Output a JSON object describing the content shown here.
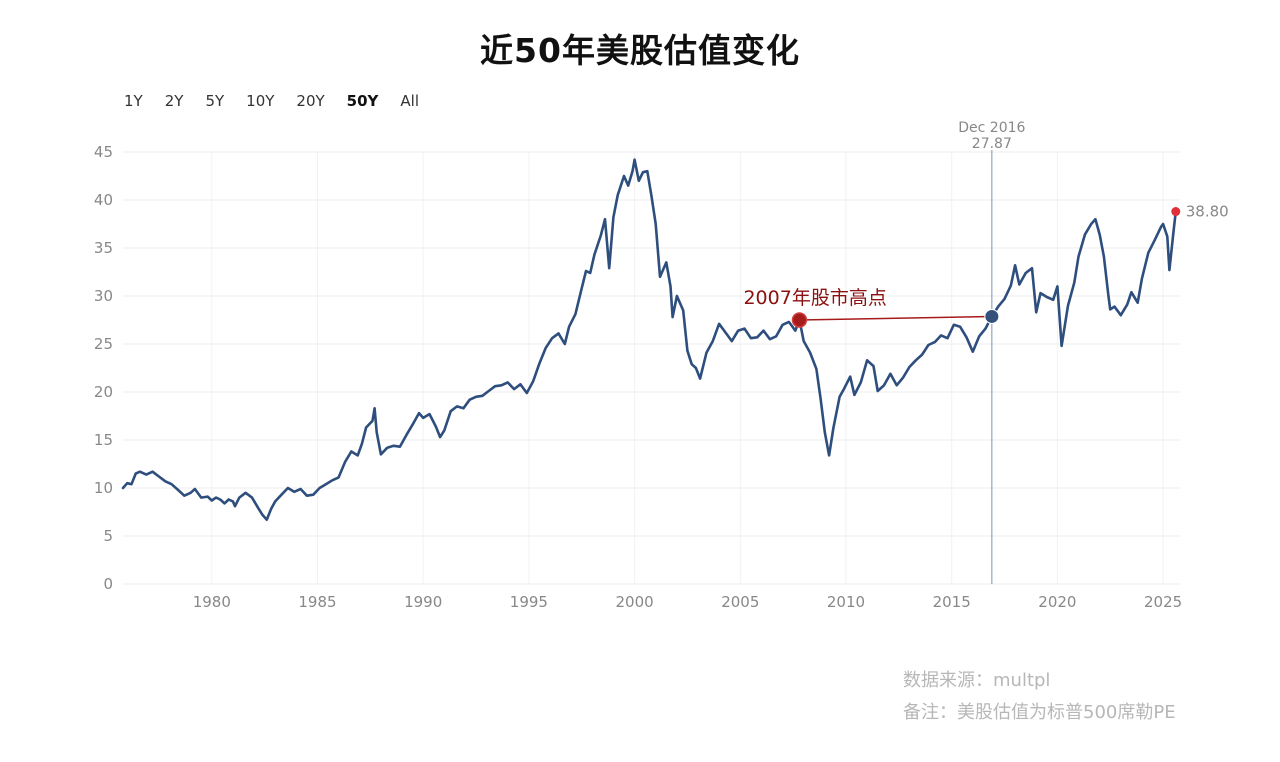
{
  "title": "近50年美股估值变化",
  "ranges": [
    {
      "label": "1Y",
      "active": false
    },
    {
      "label": "2Y",
      "active": false
    },
    {
      "label": "5Y",
      "active": false
    },
    {
      "label": "10Y",
      "active": false
    },
    {
      "label": "20Y",
      "active": false
    },
    {
      "label": "50Y",
      "active": true
    },
    {
      "label": "All",
      "active": false
    }
  ],
  "notes": {
    "source": "数据来源：multpl",
    "remark": "备注：美股估值为标普500席勒PE"
  },
  "colors": {
    "line": "#2e4e7e",
    "grid": "#ececec",
    "axis_text": "#888888",
    "annotation": "#8b1010",
    "last_point": "#e0303a",
    "marker": "#34507d"
  },
  "chart_data": {
    "type": "line",
    "title": "",
    "xlabel": "",
    "ylabel": "",
    "xlim": [
      1975.8,
      2025.8
    ],
    "ylim": [
      0,
      45
    ],
    "x_ticks": [
      1980,
      1985,
      1990,
      1995,
      2000,
      2005,
      2010,
      2015,
      2020,
      2025
    ],
    "y_ticks": [
      0,
      5,
      10,
      15,
      20,
      25,
      30,
      35,
      40,
      45
    ],
    "grid": true,
    "series": [
      {
        "points": [
          [
            1975.8,
            10.0
          ],
          [
            1976.0,
            10.5
          ],
          [
            1976.2,
            10.4
          ],
          [
            1976.4,
            11.5
          ],
          [
            1976.6,
            11.7
          ],
          [
            1976.9,
            11.4
          ],
          [
            1977.2,
            11.7
          ],
          [
            1977.5,
            11.2
          ],
          [
            1977.8,
            10.7
          ],
          [
            1978.1,
            10.4
          ],
          [
            1978.4,
            9.8
          ],
          [
            1978.7,
            9.2
          ],
          [
            1979.0,
            9.5
          ],
          [
            1979.2,
            9.9
          ],
          [
            1979.5,
            9.0
          ],
          [
            1979.8,
            9.1
          ],
          [
            1980.0,
            8.7
          ],
          [
            1980.2,
            9.0
          ],
          [
            1980.4,
            8.8
          ],
          [
            1980.6,
            8.4
          ],
          [
            1980.8,
            8.8
          ],
          [
            1981.0,
            8.6
          ],
          [
            1981.1,
            8.1
          ],
          [
            1981.3,
            9.0
          ],
          [
            1981.6,
            9.5
          ],
          [
            1981.9,
            9.0
          ],
          [
            1982.2,
            7.9
          ],
          [
            1982.4,
            7.2
          ],
          [
            1982.6,
            6.7
          ],
          [
            1982.8,
            7.8
          ],
          [
            1983.0,
            8.6
          ],
          [
            1983.3,
            9.3
          ],
          [
            1983.6,
            10.0
          ],
          [
            1983.9,
            9.6
          ],
          [
            1984.2,
            9.9
          ],
          [
            1984.5,
            9.2
          ],
          [
            1984.8,
            9.3
          ],
          [
            1985.1,
            10.0
          ],
          [
            1985.4,
            10.4
          ],
          [
            1985.7,
            10.8
          ],
          [
            1986.0,
            11.1
          ],
          [
            1986.3,
            12.7
          ],
          [
            1986.6,
            13.8
          ],
          [
            1986.9,
            13.4
          ],
          [
            1987.1,
            14.6
          ],
          [
            1987.3,
            16.3
          ],
          [
            1987.6,
            17.0
          ],
          [
            1987.7,
            18.3
          ],
          [
            1987.8,
            15.8
          ],
          [
            1988.0,
            13.5
          ],
          [
            1988.3,
            14.2
          ],
          [
            1988.6,
            14.4
          ],
          [
            1988.9,
            14.3
          ],
          [
            1989.2,
            15.5
          ],
          [
            1989.5,
            16.6
          ],
          [
            1989.8,
            17.8
          ],
          [
            1990.0,
            17.3
          ],
          [
            1990.3,
            17.7
          ],
          [
            1990.6,
            16.4
          ],
          [
            1990.8,
            15.3
          ],
          [
            1991.0,
            16.0
          ],
          [
            1991.3,
            18.0
          ],
          [
            1991.6,
            18.5
          ],
          [
            1991.9,
            18.3
          ],
          [
            1992.2,
            19.2
          ],
          [
            1992.5,
            19.5
          ],
          [
            1992.8,
            19.6
          ],
          [
            1993.1,
            20.1
          ],
          [
            1993.4,
            20.6
          ],
          [
            1993.7,
            20.7
          ],
          [
            1994.0,
            21.0
          ],
          [
            1994.3,
            20.3
          ],
          [
            1994.6,
            20.8
          ],
          [
            1994.9,
            19.9
          ],
          [
            1995.2,
            21.1
          ],
          [
            1995.5,
            23.0
          ],
          [
            1995.8,
            24.6
          ],
          [
            1996.1,
            25.6
          ],
          [
            1996.4,
            26.1
          ],
          [
            1996.7,
            25.0
          ],
          [
            1996.9,
            26.8
          ],
          [
            1997.2,
            28.1
          ],
          [
            1997.5,
            30.8
          ],
          [
            1997.7,
            32.6
          ],
          [
            1997.9,
            32.4
          ],
          [
            1998.1,
            34.3
          ],
          [
            1998.4,
            36.3
          ],
          [
            1998.6,
            38.0
          ],
          [
            1998.8,
            32.9
          ],
          [
            1999.0,
            38.2
          ],
          [
            1999.2,
            40.5
          ],
          [
            1999.5,
            42.5
          ],
          [
            1999.7,
            41.5
          ],
          [
            1999.9,
            43.0
          ],
          [
            2000.0,
            44.2
          ],
          [
            2000.2,
            42.0
          ],
          [
            2000.4,
            42.9
          ],
          [
            2000.6,
            43.0
          ],
          [
            2000.8,
            40.4
          ],
          [
            2001.0,
            37.5
          ],
          [
            2001.2,
            32.0
          ],
          [
            2001.5,
            33.5
          ],
          [
            2001.7,
            31.0
          ],
          [
            2001.8,
            27.8
          ],
          [
            2002.0,
            30.0
          ],
          [
            2002.3,
            28.5
          ],
          [
            2002.5,
            24.3
          ],
          [
            2002.7,
            22.9
          ],
          [
            2002.9,
            22.5
          ],
          [
            2003.1,
            21.4
          ],
          [
            2003.4,
            24.1
          ],
          [
            2003.7,
            25.3
          ],
          [
            2004.0,
            27.1
          ],
          [
            2004.3,
            26.2
          ],
          [
            2004.6,
            25.3
          ],
          [
            2004.9,
            26.4
          ],
          [
            2005.2,
            26.6
          ],
          [
            2005.5,
            25.6
          ],
          [
            2005.8,
            25.7
          ],
          [
            2006.1,
            26.4
          ],
          [
            2006.4,
            25.5
          ],
          [
            2006.7,
            25.8
          ],
          [
            2007.0,
            27.0
          ],
          [
            2007.3,
            27.3
          ],
          [
            2007.6,
            26.4
          ],
          [
            2007.8,
            27.5
          ],
          [
            2008.0,
            25.3
          ],
          [
            2008.3,
            24.1
          ],
          [
            2008.6,
            22.4
          ],
          [
            2008.8,
            19.3
          ],
          [
            2009.0,
            15.8
          ],
          [
            2009.2,
            13.4
          ],
          [
            2009.4,
            16.2
          ],
          [
            2009.7,
            19.5
          ],
          [
            2009.9,
            20.3
          ],
          [
            2010.2,
            21.6
          ],
          [
            2010.4,
            19.7
          ],
          [
            2010.7,
            21.0
          ],
          [
            2011.0,
            23.3
          ],
          [
            2011.3,
            22.7
          ],
          [
            2011.5,
            20.1
          ],
          [
            2011.8,
            20.7
          ],
          [
            2012.1,
            21.9
          ],
          [
            2012.4,
            20.7
          ],
          [
            2012.7,
            21.5
          ],
          [
            2013.0,
            22.6
          ],
          [
            2013.3,
            23.3
          ],
          [
            2013.6,
            23.9
          ],
          [
            2013.9,
            24.9
          ],
          [
            2014.2,
            25.2
          ],
          [
            2014.5,
            25.9
          ],
          [
            2014.8,
            25.6
          ],
          [
            2015.1,
            27.0
          ],
          [
            2015.4,
            26.8
          ],
          [
            2015.7,
            25.7
          ],
          [
            2016.0,
            24.2
          ],
          [
            2016.3,
            25.8
          ],
          [
            2016.6,
            26.6
          ],
          [
            2016.9,
            27.9
          ],
          [
            2017.2,
            28.9
          ],
          [
            2017.5,
            29.7
          ],
          [
            2017.8,
            31.1
          ],
          [
            2018.0,
            33.2
          ],
          [
            2018.2,
            31.2
          ],
          [
            2018.5,
            32.4
          ],
          [
            2018.8,
            32.9
          ],
          [
            2019.0,
            28.3
          ],
          [
            2019.2,
            30.3
          ],
          [
            2019.5,
            29.9
          ],
          [
            2019.8,
            29.6
          ],
          [
            2020.0,
            31.0
          ],
          [
            2020.2,
            24.8
          ],
          [
            2020.5,
            29.0
          ],
          [
            2020.8,
            31.4
          ],
          [
            2021.0,
            34.1
          ],
          [
            2021.3,
            36.4
          ],
          [
            2021.6,
            37.5
          ],
          [
            2021.8,
            38.0
          ],
          [
            2022.0,
            36.4
          ],
          [
            2022.2,
            34.1
          ],
          [
            2022.4,
            30.3
          ],
          [
            2022.5,
            28.6
          ],
          [
            2022.7,
            28.9
          ],
          [
            2023.0,
            28.0
          ],
          [
            2023.3,
            29.1
          ],
          [
            2023.5,
            30.4
          ],
          [
            2023.8,
            29.3
          ],
          [
            2024.0,
            31.8
          ],
          [
            2024.3,
            34.5
          ],
          [
            2024.6,
            35.8
          ],
          [
            2024.9,
            37.2
          ],
          [
            2025.0,
            37.5
          ],
          [
            2025.2,
            36.2
          ],
          [
            2025.3,
            32.7
          ],
          [
            2025.5,
            36.9
          ],
          [
            2025.6,
            38.8
          ]
        ]
      }
    ],
    "last_value": {
      "x": 2025.6,
      "y": 38.8,
      "label": "38.80"
    },
    "crosshair": {
      "x": 2016.9,
      "y": 27.87,
      "date_label": "Dec 2016",
      "value_label": "27.87"
    },
    "annotation": {
      "text": "2007年股市高点",
      "x_start": 2007.8,
      "x_end": 2016.9,
      "y": 27.5
    }
  }
}
